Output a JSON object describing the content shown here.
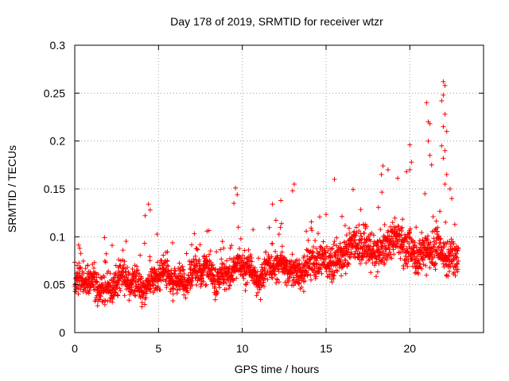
{
  "chart_data": {
    "type": "scatter",
    "title": "Day 178 of 2019, SRMTID for receiver wtzr",
    "xlabel": "GPS time / hours",
    "ylabel": "SRMTID / TECUs",
    "xlim": [
      0,
      24.4
    ],
    "ylim": [
      0,
      0.3
    ],
    "xticks": [
      0,
      5,
      10,
      15,
      20
    ],
    "yticks": [
      0,
      0.05,
      0.1,
      0.15,
      0.2,
      0.25,
      0.3
    ],
    "xtick_labels": [
      "0",
      "5",
      "10",
      "15",
      "20"
    ],
    "ytick_labels": [
      "0",
      "0.05",
      "0.1",
      "0.15",
      "0.2",
      "0.25",
      "0.3"
    ],
    "grid": true,
    "marker": "+",
    "series_color": "#ff0000",
    "trend": [
      {
        "x": 0,
        "y": 0.05
      },
      {
        "x": 3,
        "y": 0.05
      },
      {
        "x": 6,
        "y": 0.058
      },
      {
        "x": 9,
        "y": 0.062
      },
      {
        "x": 12,
        "y": 0.066
      },
      {
        "x": 14.5,
        "y": 0.07
      },
      {
        "x": 16,
        "y": 0.082
      },
      {
        "x": 18,
        "y": 0.09
      },
      {
        "x": 20,
        "y": 0.09
      },
      {
        "x": 21,
        "y": 0.082
      },
      {
        "x": 22.9,
        "y": 0.08
      }
    ],
    "spikes": [
      {
        "x": 4.4,
        "y": 0.134
      },
      {
        "x": 4.5,
        "y": 0.128
      },
      {
        "x": 4.2,
        "y": 0.122
      },
      {
        "x": 9.6,
        "y": 0.151
      },
      {
        "x": 9.7,
        "y": 0.144
      },
      {
        "x": 9.5,
        "y": 0.135
      },
      {
        "x": 11.8,
        "y": 0.134
      },
      {
        "x": 12.3,
        "y": 0.138
      },
      {
        "x": 13.1,
        "y": 0.155
      },
      {
        "x": 13.0,
        "y": 0.148
      },
      {
        "x": 15.5,
        "y": 0.16
      },
      {
        "x": 18.4,
        "y": 0.174
      },
      {
        "x": 18.3,
        "y": 0.165
      },
      {
        "x": 18.7,
        "y": 0.17
      },
      {
        "x": 19.8,
        "y": 0.168
      },
      {
        "x": 20.0,
        "y": 0.196
      },
      {
        "x": 20.1,
        "y": 0.178
      },
      {
        "x": 20.0,
        "y": 0.17
      },
      {
        "x": 21.0,
        "y": 0.24
      },
      {
        "x": 21.1,
        "y": 0.22
      },
      {
        "x": 21.2,
        "y": 0.218
      },
      {
        "x": 21.1,
        "y": 0.2
      },
      {
        "x": 21.2,
        "y": 0.185
      },
      {
        "x": 21.3,
        "y": 0.175
      },
      {
        "x": 22.0,
        "y": 0.262
      },
      {
        "x": 22.1,
        "y": 0.258
      },
      {
        "x": 22.0,
        "y": 0.248
      },
      {
        "x": 21.9,
        "y": 0.242
      },
      {
        "x": 22.1,
        "y": 0.228
      },
      {
        "x": 22.0,
        "y": 0.215
      },
      {
        "x": 22.2,
        "y": 0.21
      },
      {
        "x": 21.9,
        "y": 0.195
      },
      {
        "x": 22.1,
        "y": 0.19
      },
      {
        "x": 22.0,
        "y": 0.182
      },
      {
        "x": 22.2,
        "y": 0.165
      },
      {
        "x": 22.1,
        "y": 0.155
      },
      {
        "x": 22.4,
        "y": 0.15
      },
      {
        "x": 22.5,
        "y": 0.14
      },
      {
        "x": 20.9,
        "y": 0.145
      }
    ]
  }
}
